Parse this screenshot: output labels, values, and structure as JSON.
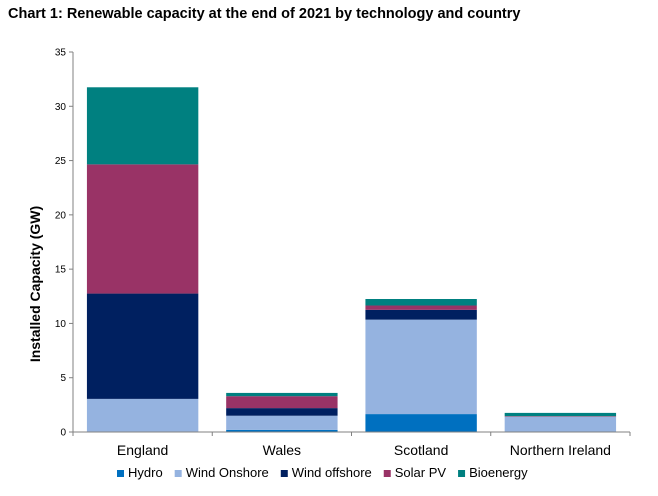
{
  "chart_data": {
    "type": "bar",
    "stacked": true,
    "title": "Chart 1: Renewable capacity at the end of 2021 by technology and country",
    "xlabel": "",
    "ylabel": "Installed Capacity (GW)",
    "ylim": [
      0,
      35
    ],
    "yticks": [
      0,
      5,
      10,
      15,
      20,
      25,
      30,
      35
    ],
    "grid": false,
    "legend_position": "bottom",
    "categories": [
      "England",
      "Wales",
      "Scotland",
      "Northern Ireland"
    ],
    "series": [
      {
        "name": "Hydro",
        "color": "#0070C0",
        "values": [
          0.05,
          0.2,
          1.65,
          0.01
        ]
      },
      {
        "name": "Wind Onshore",
        "color": "#95B3E0",
        "values": [
          3.0,
          1.3,
          8.7,
          1.4
        ]
      },
      {
        "name": "Wind offshore",
        "color": "#002060",
        "values": [
          9.7,
          0.7,
          0.9,
          0.0
        ]
      },
      {
        "name": "Solar PV",
        "color": "#993366",
        "values": [
          11.9,
          1.1,
          0.4,
          0.05
        ]
      },
      {
        "name": "Bioenergy",
        "color": "#008080",
        "values": [
          7.1,
          0.3,
          0.6,
          0.3
        ]
      }
    ]
  }
}
